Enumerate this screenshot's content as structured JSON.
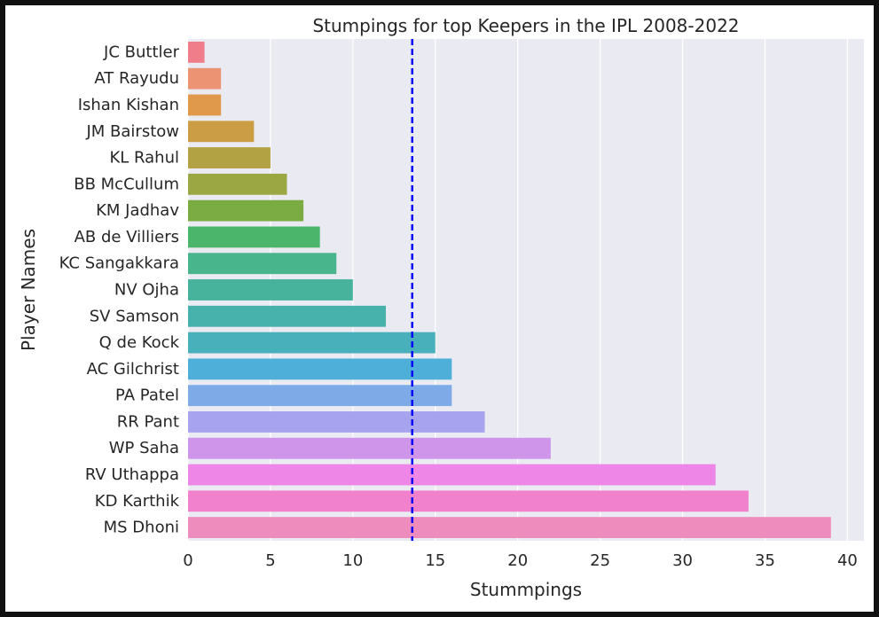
{
  "chart_data": {
    "type": "bar",
    "orientation": "horizontal",
    "title": "Stumpings for top Keepers in the IPL 2008-2022",
    "xlabel": "Stummpings",
    "ylabel": "Player Names",
    "categories": [
      "JC Buttler",
      "AT Rayudu",
      "Ishan Kishan",
      "JM Bairstow",
      "KL Rahul",
      "BB McCullum",
      "KM Jadhav",
      "AB de Villiers",
      "KC Sangakkara",
      "NV Ojha",
      "SV Samson",
      "Q de Kock",
      "AC Gilchrist",
      "PA Patel",
      "RR Pant",
      "WP Saha",
      "RV Uthappa",
      "KD Karthik",
      "MS Dhoni"
    ],
    "values": [
      1,
      2,
      2,
      4,
      5,
      6,
      7,
      8,
      9,
      10,
      12,
      15,
      16,
      16,
      18,
      22,
      32,
      34,
      39
    ],
    "colors": [
      "#f07e8a",
      "#ec9373",
      "#e0994a",
      "#cb9d45",
      "#b2a243",
      "#9ba742",
      "#7aac43",
      "#4bb56c",
      "#48b58d",
      "#48b39d",
      "#46b2ab",
      "#48b0ba",
      "#4eb0d9",
      "#7eaae8",
      "#a8a3ef",
      "#cf95ea",
      "#ed86e7",
      "#f181cc",
      "#ee8cbd"
    ],
    "xticks": [
      0,
      5,
      10,
      15,
      20,
      25,
      30,
      35,
      40
    ],
    "xlim": [
      0,
      41
    ],
    "reference_line": {
      "value": 13.6,
      "style": "dashed",
      "color": "#0000ff"
    },
    "grid": true,
    "plot_background": "#eaeaf2",
    "grid_color": "#ffffff"
  }
}
